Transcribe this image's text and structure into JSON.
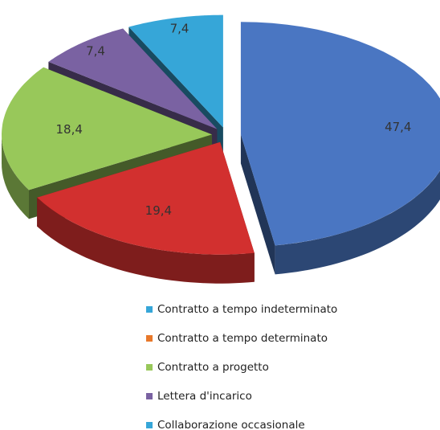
{
  "chart_data": {
    "type": "pie3d",
    "categories": [
      "Contratto a tempo indeterminato",
      "Contratto a tempo determinato",
      "Contratto a progetto",
      "Lettera d'incarico",
      "Collaborazione occasionale"
    ],
    "values": [
      47.4,
      19.4,
      18.4,
      7.4,
      7.4
    ],
    "value_labels": [
      "47,4",
      "19,4",
      "18,4",
      "7,4",
      "7,4"
    ],
    "colors": [
      "#4a76c2",
      "#d2302f",
      "#98c85a",
      "#7a62a2",
      "#36a6d8"
    ],
    "legend_colors": [
      "#36a6d8",
      "#e8782a",
      "#98c85a",
      "#7a62a2",
      "#36a6d8"
    ],
    "exploded": true
  }
}
